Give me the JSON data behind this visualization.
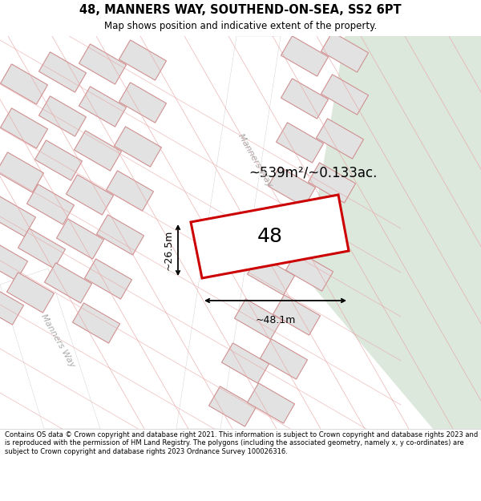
{
  "title_line1": "48, MANNERS WAY, SOUTHEND-ON-SEA, SS2 6PT",
  "title_line2": "Map shows position and indicative extent of the property.",
  "footer_text": "Contains OS data © Crown copyright and database right 2021. This information is subject to Crown copyright and database rights 2023 and is reproduced with the permission of HM Land Registry. The polygons (including the associated geometry, namely x, y co-ordinates) are subject to Crown copyright and database rights 2023 Ordnance Survey 100026316.",
  "area_label": "~539m²/~0.133ac.",
  "width_label": "~48.1m",
  "height_label": "~26.5m",
  "plot_number": "48",
  "road_label_top": "Manners Way",
  "road_label_bottom": "Manners Way"
}
